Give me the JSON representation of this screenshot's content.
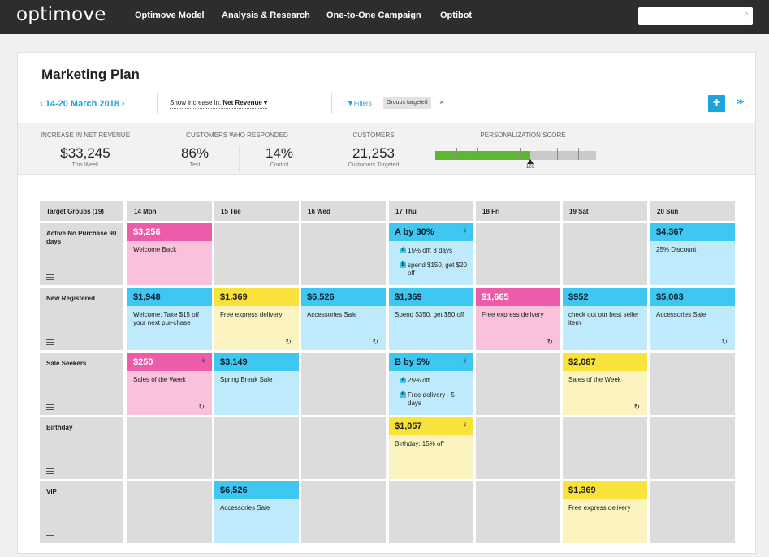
{
  "app": {
    "logo": "optimove",
    "nav": [
      "Optimove Model",
      "Analysis & Research",
      "One-to-One Campaign",
      "Optibot"
    ],
    "search_icon": "search-icon"
  },
  "page": {
    "title": "Marketing Plan",
    "date_range": "‹ 14-20 March 2018 ›",
    "show_increase_label": "Show increase in: ",
    "show_increase_value": "Net Revenue ▾",
    "filters_label": "Filters",
    "filter_chip": "Groups targeted",
    "chip_close": "×",
    "add_label": "+",
    "expand_label": "≫"
  },
  "stats": {
    "net_revenue": {
      "label": "INCREASE IN NET REVENUE",
      "value": "$33,245",
      "sub": "This Week"
    },
    "responded": {
      "label": "CUSTOMERS WHO RESPONDED",
      "test_value": "86%",
      "test_sub": "Test",
      "control_value": "14%",
      "control_sub": "Control"
    },
    "customers": {
      "label": "CUSTOMERS",
      "value": "21,253",
      "sub": "Customers Targeted"
    },
    "personalization": {
      "label": "PERSONALIZATION SCORE",
      "score": 126,
      "score_text": "126",
      "fill_fraction": 0.59
    }
  },
  "calendar": {
    "corner_label": "Target Groups (19)",
    "days": [
      "14 Mon",
      "15 Tue",
      "16 Wed",
      "17 Thu",
      "18 Fri",
      "19 Sat",
      "20 Sun"
    ],
    "groups": [
      {
        "name": "Active No Purchase 90 days"
      },
      {
        "name": "New Registered"
      },
      {
        "name": "Sale Seekers"
      },
      {
        "name": "Birthday"
      },
      {
        "name": "VIP"
      }
    ],
    "cards": {
      "r0c0": {
        "amount": "$3,256",
        "text": "Welcome Back",
        "color": "pink"
      },
      "r0c3": {
        "amount": "A by 30%",
        "ab_a": "15% off: 3 days",
        "ab_b": "spend $150, get $20 off",
        "color": "blue"
      },
      "r0c6": {
        "amount": "$4,367",
        "text": "25% Discount",
        "color": "blue"
      },
      "r1c0": {
        "amount": "$1,948",
        "text": "Welcome: Take $15 off your next pur-chase",
        "color": "blue"
      },
      "r1c1": {
        "amount": "$1,369",
        "text": "Free express delivery",
        "color": "yellow"
      },
      "r1c2": {
        "amount": "$6,526",
        "text": "Accessories Sale",
        "color": "blue"
      },
      "r1c3": {
        "amount": "$1,369",
        "text": "Spend $350, get $50 off",
        "color": "blue"
      },
      "r1c4": {
        "amount": "$1,665",
        "text": "Free express delivery",
        "color": "pink"
      },
      "r1c5": {
        "amount": "$952",
        "text": "check out our best seller item",
        "color": "blue"
      },
      "r1c6": {
        "amount": "$5,003",
        "text": "Accessories Sale",
        "color": "blue"
      },
      "r2c0": {
        "amount": "$250",
        "text": "Sales of the Week",
        "color": "pink"
      },
      "r2c1": {
        "amount": "$3,149",
        "text": "Spring Break Sale",
        "color": "blue"
      },
      "r2c3": {
        "amount": "B by 5%",
        "ab_a": "25% off",
        "ab_b": "Free delivery - 5 days",
        "color": "blue"
      },
      "r2c5": {
        "amount": "$2,087",
        "text": "Sales of the Week",
        "color": "yellow"
      },
      "r3c3": {
        "amount": "$1,057",
        "text": "Birthday: 15% off",
        "color": "yellow"
      },
      "r4c1": {
        "amount": "$6,526",
        "text": "Accessories Sale",
        "color": "blue"
      },
      "r4c5": {
        "amount": "$1,369",
        "text": "Free express delivery",
        "color": "yellow"
      }
    },
    "ab_tag_a": "A",
    "ab_tag_b": "B",
    "bulb_glyph": "♀",
    "refresh_glyph": "↻"
  }
}
